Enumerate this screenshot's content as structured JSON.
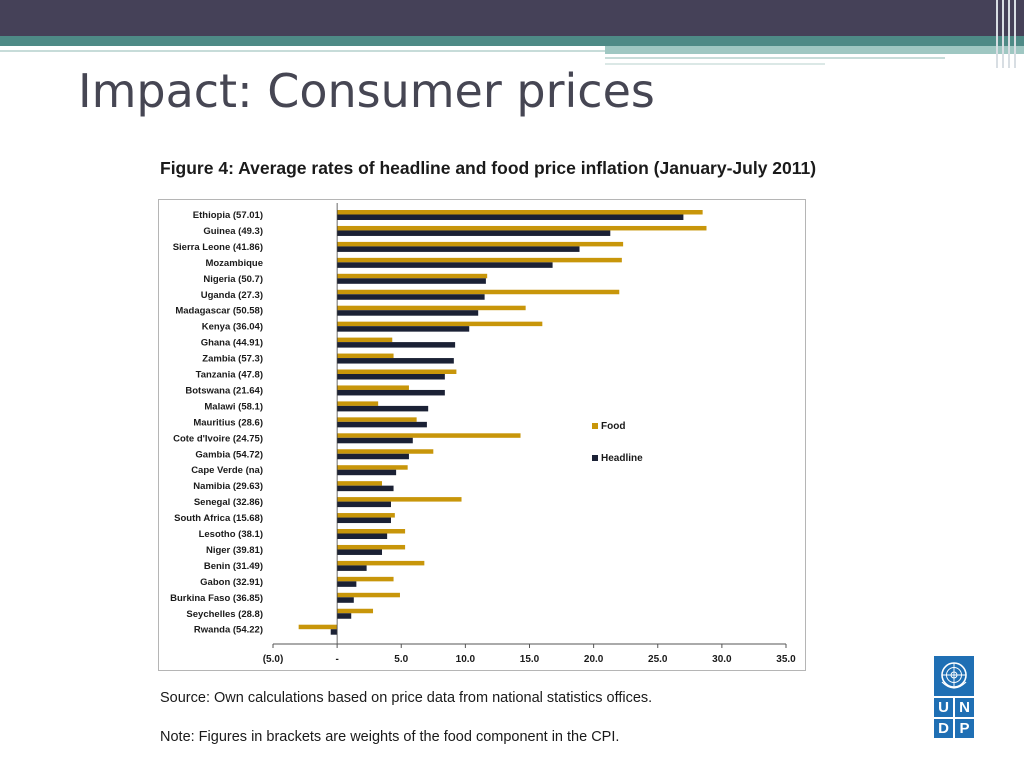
{
  "slide": {
    "title": "Impact: Consumer prices"
  },
  "figure": {
    "title": "Figure 4: Average rates of headline and food price inflation (January-July 2011)",
    "source": "Source: Own calculations based on price data from national statistics offices.",
    "note": "Note: Figures in brackets are weights of the food component in the CPI."
  },
  "logo": {
    "letters": [
      "U",
      "N",
      "D",
      "P"
    ]
  },
  "chart_data": {
    "type": "bar",
    "orientation": "horizontal",
    "title": "Figure 4: Average rates of headline and food price inflation (January-July 2011)",
    "xlim": [
      -5,
      35
    ],
    "xticks": [
      "(5.0)",
      "-",
      "5.0",
      "10.0",
      "15.0",
      "20.0",
      "25.0",
      "30.0",
      "35.0"
    ],
    "xtick_values": [
      -5,
      0,
      5,
      10,
      15,
      20,
      25,
      30,
      35
    ],
    "grid": false,
    "legend_position": "right",
    "categories": [
      "Ethiopia (57.01)",
      "Guinea (49.3)",
      "Sierra Leone (41.86)",
      "Mozambique",
      "Nigeria (50.7)",
      "Uganda (27.3)",
      "Madagascar (50.58)",
      "Kenya (36.04)",
      "Ghana (44.91)",
      "Zambia (57.3)",
      "Tanzania (47.8)",
      "Botswana (21.64)",
      "Malawi (58.1)",
      "Mauritius (28.6)",
      "Cote d'Ivoire (24.75)",
      "Gambia (54.72)",
      "Cape Verde (na)",
      "Namibia (29.63)",
      "Senegal (32.86)",
      "South Africa (15.68)",
      "Lesotho (38.1)",
      "Niger (39.81)",
      "Benin (31.49)",
      "Gabon (32.91)",
      "Burkina Faso (36.85)",
      "Seychelles (28.8)",
      "Rwanda (54.22)"
    ],
    "series": [
      {
        "name": "Food",
        "color": "#c8960a",
        "values": [
          28.5,
          28.8,
          22.3,
          22.2,
          11.7,
          22.0,
          14.7,
          16.0,
          4.3,
          4.4,
          9.3,
          5.6,
          3.2,
          6.2,
          14.3,
          7.5,
          5.5,
          3.5,
          9.7,
          4.5,
          5.3,
          5.3,
          6.8,
          4.4,
          4.9,
          2.8,
          -3.0
        ]
      },
      {
        "name": "Headline",
        "color": "#1b2135",
        "values": [
          27.0,
          21.3,
          18.9,
          16.8,
          11.6,
          11.5,
          11.0,
          10.3,
          9.2,
          9.1,
          8.4,
          8.4,
          7.1,
          7.0,
          5.9,
          5.6,
          4.6,
          4.4,
          4.2,
          4.2,
          3.9,
          3.5,
          2.3,
          1.5,
          1.3,
          1.1,
          -0.5
        ]
      }
    ]
  }
}
